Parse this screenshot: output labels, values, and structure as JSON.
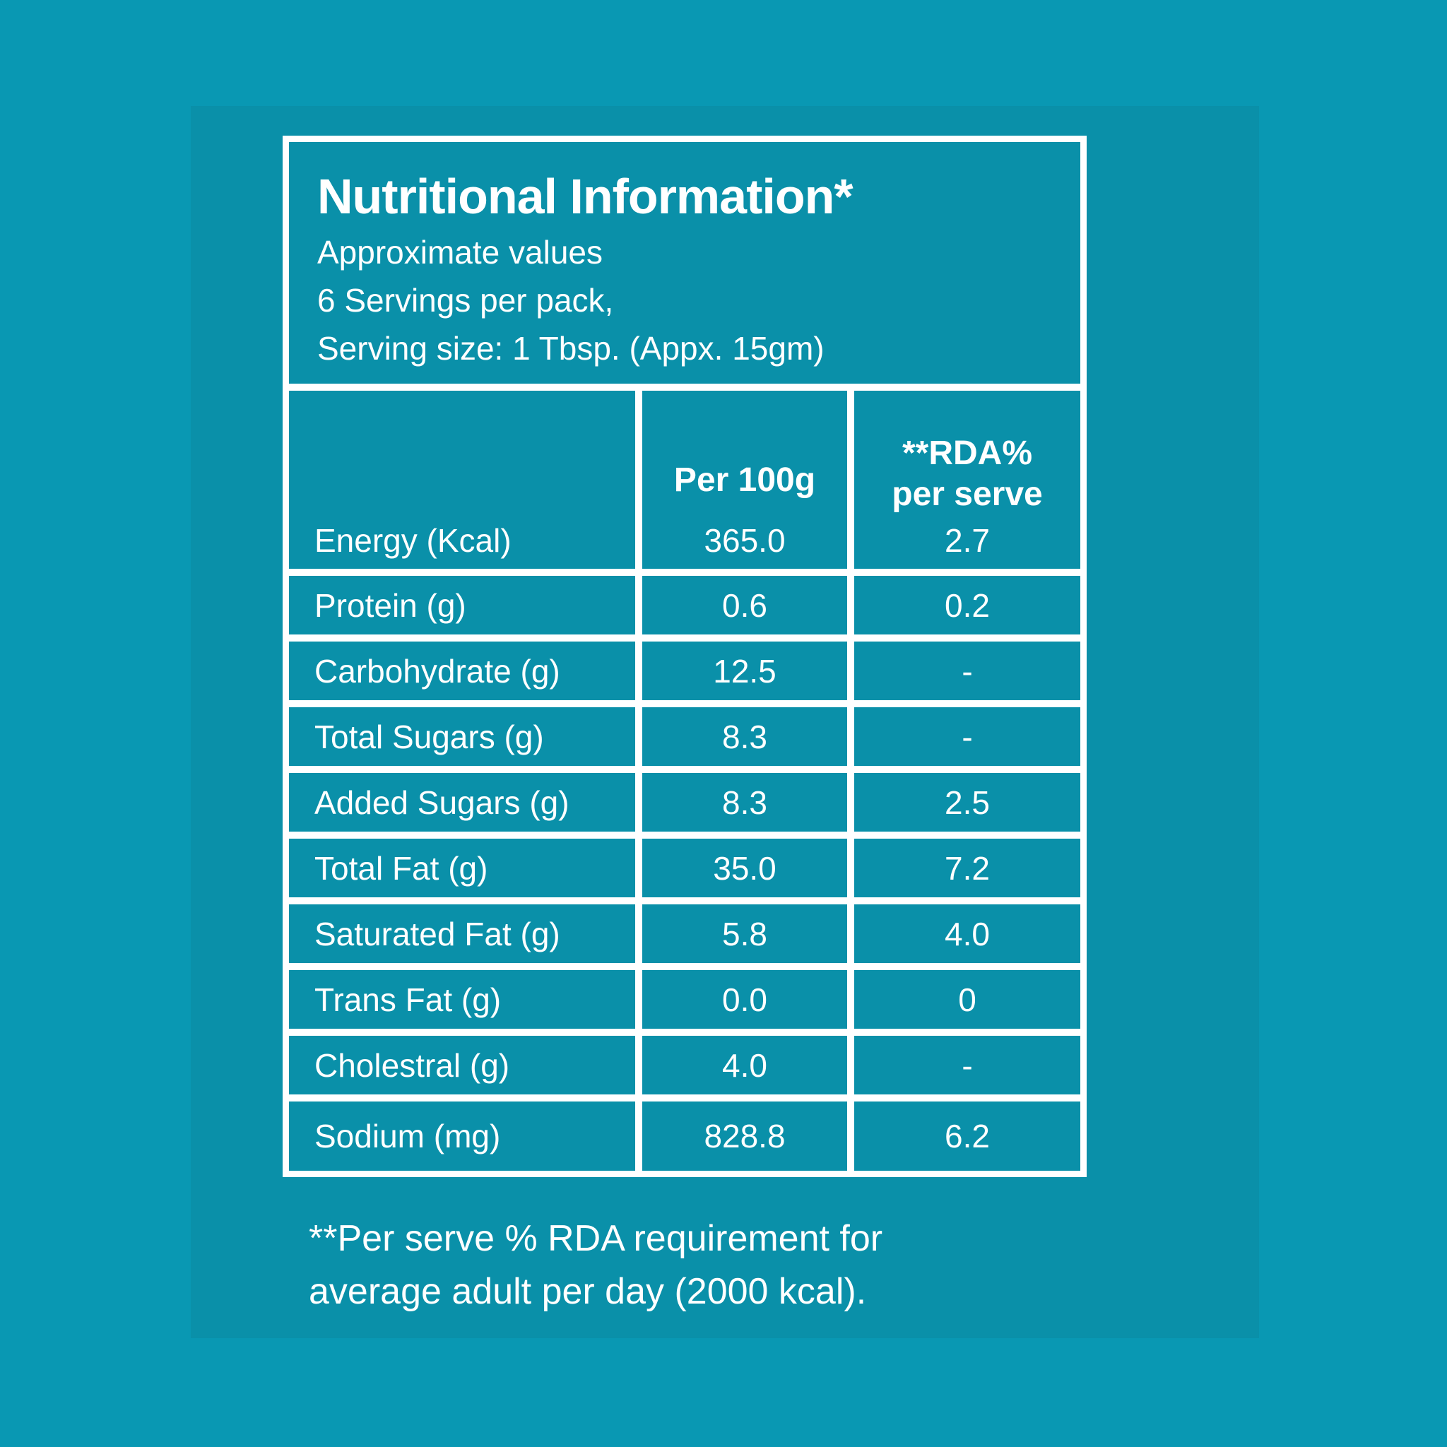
{
  "colors": {
    "background": "#0998B3",
    "card_background": "#0A90A9",
    "grid_lines": "#FFFFFF",
    "text": "#FFFFFF"
  },
  "header": {
    "title": "Nutritional Information*",
    "subtitle_lines": [
      "Approximate values",
      "6 Servings per pack,",
      "Serving size: 1 Tbsp. (Appx. 15gm)"
    ]
  },
  "table": {
    "col_headers": {
      "per_100g": "Per 100g",
      "rda_line1": "**RDA%",
      "rda_line2": "per serve"
    },
    "rows": [
      {
        "label": "Energy (Kcal)",
        "per_100g": "365.0",
        "rda_per_serve": "2.7"
      },
      {
        "label": "Protein (g)",
        "per_100g": "0.6",
        "rda_per_serve": "0.2"
      },
      {
        "label": "Carbohydrate (g)",
        "per_100g": "12.5",
        "rda_per_serve": "-"
      },
      {
        "label": "Total Sugars (g)",
        "per_100g": "8.3",
        "rda_per_serve": "-"
      },
      {
        "label": "Added Sugars (g)",
        "per_100g": "8.3",
        "rda_per_serve": "2.5"
      },
      {
        "label": "Total Fat (g)",
        "per_100g": "35.0",
        "rda_per_serve": "7.2"
      },
      {
        "label": "Saturated Fat (g)",
        "per_100g": "5.8",
        "rda_per_serve": "4.0"
      },
      {
        "label": "Trans Fat (g)",
        "per_100g": "0.0",
        "rda_per_serve": "0"
      },
      {
        "label": "Cholestral (g)",
        "per_100g": "4.0",
        "rda_per_serve": "-"
      },
      {
        "label": "Sodium (mg)",
        "per_100g": "828.8",
        "rda_per_serve": "6.2"
      }
    ]
  },
  "footer": {
    "line1": "**Per serve % RDA requirement for",
    "line2": "average adult per day (2000 kcal)."
  }
}
